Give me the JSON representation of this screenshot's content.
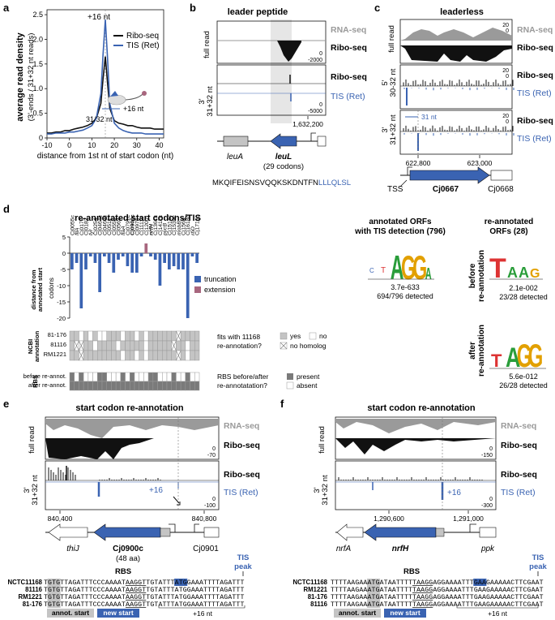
{
  "colors": {
    "blue": "#3a63b2",
    "black": "#111111",
    "gray": "#9a9a9a",
    "lightgray": "#e6e6e6",
    "midgray": "#c4c4c4",
    "darkgray": "#7a7a7a",
    "mauve": "#a8667e"
  },
  "panel_a": {
    "letter": "a",
    "peak_label": "+16 nt",
    "legend": [
      "Ribo-seq",
      "TIS (Ret)"
    ],
    "ylabel1": "average read density",
    "ylabel2": "(3'-ends / 31+32 nt reads)",
    "xlabel": "distance from 1st nt of start codon (nt)",
    "xticks": [
      "-10",
      "0",
      "10",
      "20",
      "30",
      "40"
    ],
    "yticks": [
      "0",
      "0.5",
      "1.0",
      "1.5",
      "2.0",
      "2.5"
    ],
    "inset_nt": "+16 nt",
    "inset_len": "31/32 nt",
    "chart_data": {
      "type": "line",
      "x": [
        -10,
        -8,
        -6,
        -4,
        -2,
        0,
        2,
        4,
        6,
        8,
        10,
        12,
        14,
        15,
        16,
        17,
        18,
        20,
        22,
        24,
        26,
        28,
        30,
        32,
        34,
        36,
        38,
        40,
        42
      ],
      "series": [
        {
          "name": "Ribo-seq",
          "values": [
            0.1,
            0.1,
            0.12,
            0.12,
            0.15,
            0.15,
            0.18,
            0.2,
            0.22,
            0.25,
            0.3,
            0.4,
            0.7,
            1.2,
            1.65,
            1.1,
            0.6,
            0.35,
            0.3,
            0.28,
            0.25,
            0.25,
            0.22,
            0.2,
            0.2,
            0.2,
            0.18,
            0.18,
            0.18
          ]
        },
        {
          "name": "TIS (Ret)",
          "values": [
            0.08,
            0.08,
            0.1,
            0.1,
            0.1,
            0.12,
            0.12,
            0.14,
            0.16,
            0.2,
            0.25,
            0.4,
            0.9,
            1.7,
            2.4,
            1.6,
            0.7,
            0.3,
            0.2,
            0.15,
            0.12,
            0.1,
            0.1,
            0.1,
            0.08,
            0.08,
            0.08,
            0.08,
            0.08
          ]
        }
      ],
      "xlim": [
        -10,
        42
      ],
      "ylim": [
        0,
        2.6
      ]
    }
  },
  "panel_b": {
    "letter": "b",
    "title": "leader peptide",
    "row1": "full read",
    "row2a": "3'",
    "row2b": "31+32 nt",
    "rna": "RNA-seq",
    "ribo": "Ribo-seq",
    "ribo2": "Ribo-seq",
    "tis": "TIS (Ret)",
    "s1a": "0",
    "s1b": "-2000",
    "s2a": "0",
    "s2b": "-5000",
    "coord": "1,632,200",
    "gene1": "leuA",
    "gene2": "leuL",
    "codons": "(29 codons)",
    "seq_black": "MKQIFEISNSVQQKSKDNTFN",
    "seq_blue": "LLLQLSL"
  },
  "panel_c": {
    "letter": "c",
    "title": "leaderless",
    "row1": "full read",
    "row2a": "5'",
    "row2b": "30-32 nt",
    "row3a": "3'",
    "row3b": "31+32 nt",
    "rna": "RNA-seq",
    "ribo1": "Ribo-seq",
    "ribo2": "Ribo-seq",
    "ribo3": "Ribo-seq",
    "tis1": "TIS (Ret)",
    "tis2": "TIS (Ret)",
    "s20": "20",
    "s0": "0",
    "nt31": "31 nt",
    "coord1": "622,800",
    "coord2": "623,000",
    "gene": "Cj0667",
    "gene2": "Cj0668",
    "tss": "TSS"
  },
  "panel_d": {
    "letter": "d",
    "title": "re-annotated start codons/TIS",
    "genes": [
      "Cj0055c",
      "fliA",
      "Cj0170",
      "Cj0182",
      "tyr",
      "Cj0254",
      "Cj0464c",
      "Cj0469c",
      "Cj0511",
      "Cj0555",
      "Cj0563",
      "flaA",
      "Cj0791c",
      "Cj0900c",
      "Cj0976",
      "Cj1111c",
      "Cj1200",
      "nrfH",
      "Cj1361c",
      "Cj1417c",
      "pycB",
      "Cj1514c",
      "Cj1539c",
      "mobB",
      "Cj1564",
      "Cj1618c",
      "rbD",
      "Cj1710c"
    ],
    "ylabel1": "distance from",
    "ylabel2": "annotated start",
    "yunit": "codons",
    "yticks": [
      "5",
      "0",
      "-5",
      "-10",
      "-15",
      "-20"
    ],
    "legend_trunc": "truncation",
    "legend_ext": "extension",
    "ncbi_label1": "NCBI",
    "ncbi_label2": "annotation",
    "ncbi_rows": [
      "81-176",
      "81116",
      "RM1221"
    ],
    "ncbi_q": "fits with 11168",
    "ncbi_q2": "re-annotation?",
    "yes": "yes",
    "no": "no",
    "nohom": "no homolog",
    "rbs_label": "RBS",
    "rbs_rows": [
      "before re-annot.",
      "after re-annot."
    ],
    "rbs_q": "RBS before/after",
    "rbs_q2": "re-annotatation?",
    "present": "present",
    "absent": "absent",
    "chart_data": {
      "type": "bar",
      "categories": [
        "Cj0055c",
        "fliA",
        "Cj0170",
        "Cj0182",
        "tyr",
        "Cj0254",
        "Cj0464c",
        "Cj0469c",
        "Cj0511",
        "Cj0555",
        "Cj0563",
        "flaA",
        "Cj0791c",
        "Cj0900c",
        "Cj0976",
        "Cj1111c",
        "Cj1200",
        "nrfH",
        "Cj1361c",
        "Cj1417c",
        "pycB",
        "Cj1514c",
        "Cj1539c",
        "mobB",
        "Cj1564",
        "Cj1618c",
        "rbD",
        "Cj1710c"
      ],
      "values": [
        -5,
        -3,
        -17,
        -5,
        -1,
        -3,
        -12,
        -1,
        -3,
        -6,
        -2,
        -1,
        -4,
        -6,
        -6,
        -1,
        3,
        -1,
        -2,
        -10,
        -3,
        -5,
        -4,
        -5,
        -5,
        -20,
        -1,
        -3
      ],
      "ylim": [
        -20,
        5
      ]
    },
    "ncbi_pattern": [
      [
        "y",
        "y",
        "n",
        "y",
        "n",
        "y",
        "n",
        "n",
        "y",
        "y",
        "y",
        "n",
        "y",
        "y",
        "n",
        "y",
        "n",
        "y",
        "y",
        "y",
        "y",
        "y",
        "y",
        "x",
        "y",
        "y",
        "y",
        "y"
      ],
      [
        "y",
        "x",
        "x",
        "y",
        "y",
        "n",
        "y",
        "y",
        "y",
        "y",
        "n",
        "y",
        "y",
        "y",
        "y",
        "y",
        "n",
        "y",
        "y",
        "y",
        "y",
        "y",
        "x",
        "y",
        "y",
        "n",
        "y",
        "y"
      ],
      [
        "y",
        "y",
        "x",
        "y",
        "y",
        "y",
        "y",
        "y",
        "y",
        "y",
        "y",
        "n",
        "y",
        "y",
        "n",
        "y",
        "n",
        "y",
        "y",
        "y",
        "y",
        "y",
        "y",
        "x",
        "y",
        "n",
        "y",
        "y"
      ]
    ],
    "rbs_pattern": [
      [
        "p",
        "a",
        "p",
        "a",
        "a",
        "a",
        "p",
        "p",
        "a",
        "a",
        "a",
        "p",
        "a",
        "p",
        "a",
        "a",
        "a",
        "p",
        "p",
        "a",
        "a",
        "a",
        "p",
        "a",
        "a",
        "p",
        "a",
        "a"
      ],
      [
        "p",
        "p",
        "p",
        "p",
        "p",
        "p",
        "p",
        "p",
        "p",
        "p",
        "p",
        "p",
        "p",
        "p",
        "p",
        "p",
        "p",
        "p",
        "p",
        "p",
        "p",
        "p",
        "p",
        "p",
        "p",
        "p",
        "p",
        "p"
      ]
    ]
  },
  "panel_d_right": {
    "title1": "annotated ORFs",
    "title2": "with TIS detection (796)",
    "pval1": "3.7e-633",
    "det1": "694/796 detected",
    "title3": "re-annotated",
    "title4": "ORFs (28)",
    "before": "before",
    "before2": "re-annotation",
    "pval2": "2.1e-002",
    "det2": "23/28 detected",
    "after": "after",
    "after2": "re-annotation",
    "pval3": "5.6e-012",
    "det3": "26/28 detected"
  },
  "panel_e": {
    "letter": "e",
    "title": "start codon re-annotation",
    "row1": "full read",
    "row2a": "3'",
    "row2b": "31+32 nt",
    "rna": "RNA-seq",
    "ribo": "Ribo-seq",
    "ribo2": "Ribo-seq",
    "tis": "TIS (Ret)",
    "s1a": "0",
    "s1b": "-70",
    "s2a": "0",
    "s2b": "-100",
    "plus16": "+16",
    "coord1": "840,400",
    "coord2": "840,800",
    "gene1": "thiJ",
    "gene2": "Cj0900c",
    "aa": "(48 aa)",
    "gene3": "Cj0901",
    "rbs": "RBS",
    "tis_peak1": "TIS",
    "tis_peak2": "peak",
    "strains": [
      "NCTC11168",
      "81116",
      "RM1221",
      "81-176"
    ],
    "seqs": [
      "TGTGTTAGATTTCCCAAAATAAGGTTGTATTTATGGAAATTTTAGATTT",
      "TGTGTTAGATTTCCCAAAATAAGGTTGTATTTATGGAAATTTTAGATTT",
      "TGTGTTAGATTTCCCAAAATAAGGTTGTATTTATGGAAATTTTAGATTT",
      "TGTGTTAGATTTCCCAAAATAAGGTTGTATTTATGGAAATTTTAGATTT"
    ],
    "annot": "annot. start",
    "newstart": "new start",
    "nt16": "+16 nt"
  },
  "panel_f": {
    "letter": "f",
    "title": "start codon re-annotation",
    "row1": "full read",
    "row2a": "3'",
    "row2b": "31+32 nt",
    "rna": "RNA-seq",
    "ribo": "Ribo-seq",
    "ribo2": "Ribo-seq",
    "tis": "TIS (Ret)",
    "s1a": "0",
    "s1b": "-150",
    "s2a": "0",
    "s2b": "-300",
    "plus16": "+16",
    "coord1": "1,290,600",
    "coord2": "1,291,000",
    "gene1": "nrfA",
    "gene2": "nrfH",
    "gene3": "ppk",
    "rbs": "RBS",
    "tis_peak1": "TIS",
    "tis_peak2": "peak",
    "strains": [
      "NCTC11168",
      "RM1221",
      "81-176",
      "81116"
    ],
    "seqs": [
      "TTTTAAGAAATGATAATTTTTAAGGAGGAAAATTTGAAGAAAAACTTCGAAT",
      "TTTTAAGAAATGATAATTTTTAAGGAGGAAAATTTGAAGAAAAACTTCGAAT",
      "TTTTAAGAAATGATAATTTTTAAGGAGGAAAATTTGAAGAAAAACTTCGAAT",
      "TTTTAAGAAATGATAATTTTTAAGGAGGAAAATTTGAAGAAAAACTTCGAAT"
    ],
    "annot": "annot. start",
    "newstart": "new start",
    "nt16": "+16 nt"
  }
}
